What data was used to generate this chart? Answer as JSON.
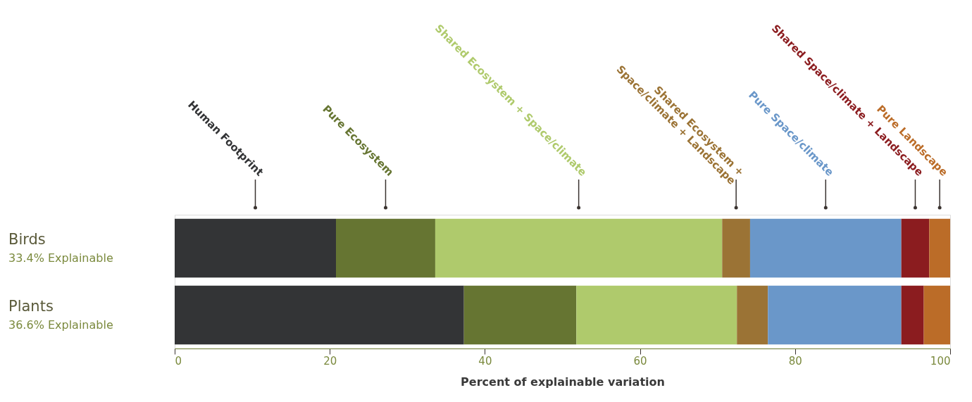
{
  "chart_data": {
    "type": "bar",
    "orientation": "horizontal",
    "stacked": true,
    "categories": [
      "Birds",
      "Plants"
    ],
    "series": [
      {
        "name": "Human Footprint",
        "color": "#333436",
        "values": [
          20.8,
          37.3
        ]
      },
      {
        "name": "Pure Ecosystem",
        "color": "#667532",
        "values": [
          12.8,
          14.5
        ]
      },
      {
        "name": "Shared Ecosystem + Space/climate",
        "color": "#afca6c",
        "values": [
          37.0,
          20.7
        ]
      },
      {
        "name": "Shared Ecosystem + Space/climate + Landscape",
        "color": "#9b7335",
        "values": [
          3.6,
          4.0
        ]
      },
      {
        "name": "Pure Space/climate",
        "color": "#6a97c9",
        "values": [
          19.5,
          17.2
        ]
      },
      {
        "name": "Shared Space/climate + Landscape",
        "color": "#8b1c1f",
        "values": [
          3.6,
          2.9
        ]
      },
      {
        "name": "Pure Landscape",
        "color": "#bb6c28",
        "values": [
          2.7,
          3.4
        ]
      }
    ],
    "xlim": [
      0,
      100
    ],
    "xticks": [
      0,
      20,
      40,
      60,
      80,
      100
    ],
    "xlabel": "Percent of explainable variation",
    "tick_labels": "x",
    "grid": false,
    "legend": "top",
    "annotations": [
      "33.4% Explainable",
      "36.6% Explainable"
    ]
  }
}
